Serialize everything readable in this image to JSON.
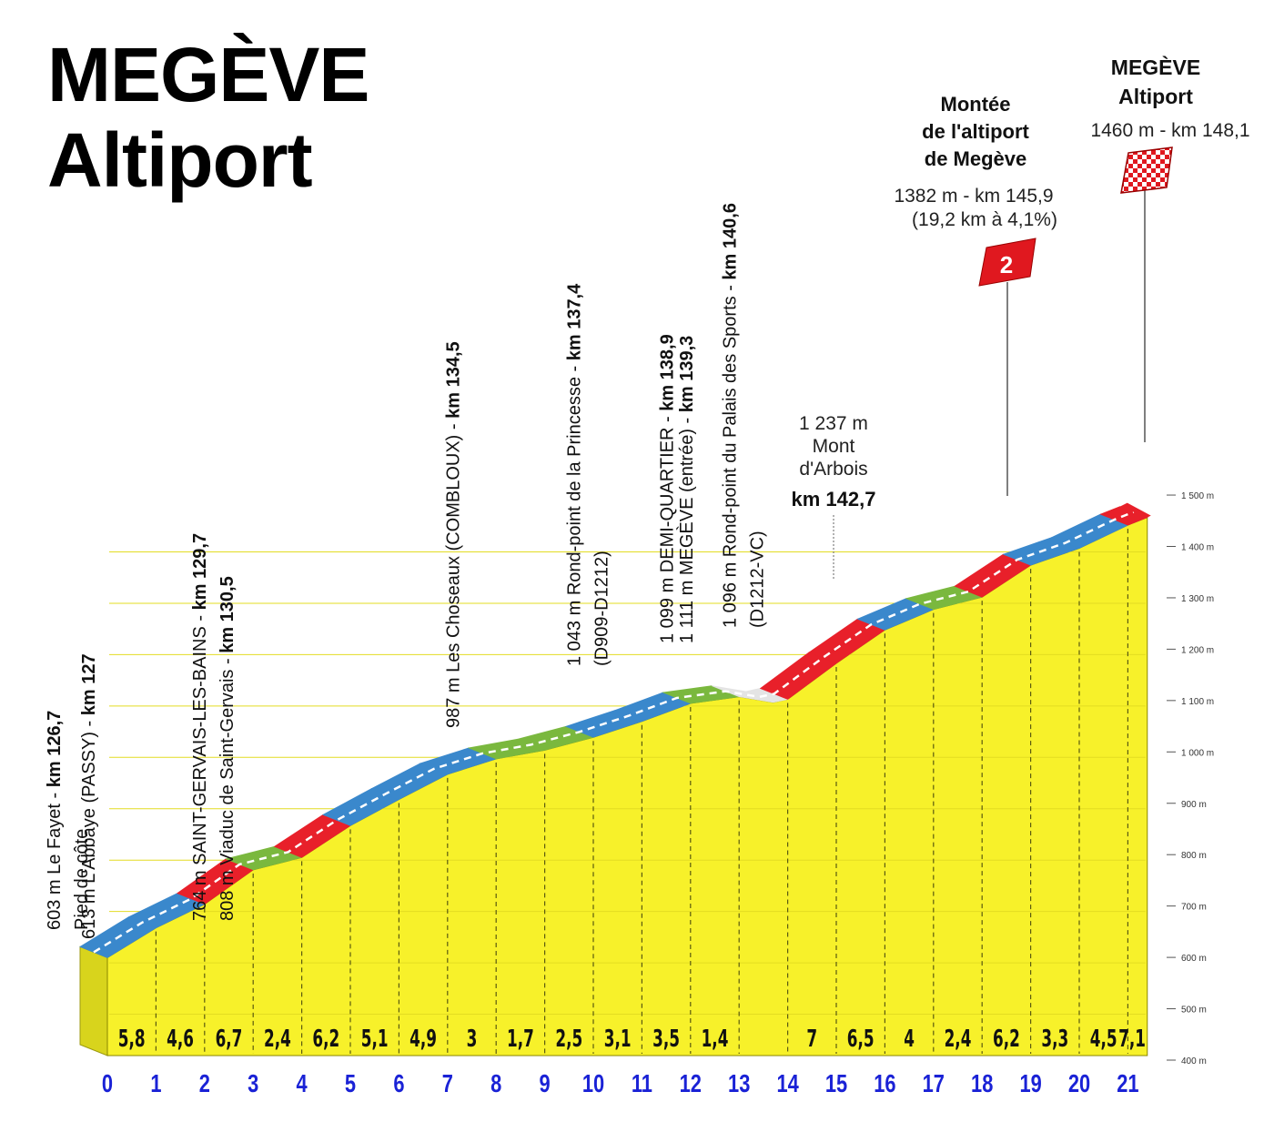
{
  "title": {
    "line1": "MEGÈVE",
    "line2": "Altiport"
  },
  "chart_data": {
    "type": "area",
    "title": "MEGÈVE Altiport",
    "x_unit": "km",
    "y_unit": "m",
    "xlim": [
      0,
      21.4
    ],
    "ylim": [
      400,
      1500
    ],
    "x_ticks": [
      "0",
      "1",
      "2",
      "3",
      "4",
      "5",
      "6",
      "7",
      "8",
      "9",
      "10",
      "11",
      "12",
      "13",
      "14",
      "15",
      "16",
      "17",
      "18",
      "19",
      "20",
      "21"
    ],
    "y_ticks": [
      "400 m",
      "500 m",
      "600 m",
      "700 m",
      "800 m",
      "900 m",
      "1 000 m",
      "1 100 m",
      "1 200 m",
      "1 300 m",
      "1 400 m",
      "1 500 m"
    ],
    "grid": false,
    "profile": [
      {
        "x": 0,
        "y": 603
      },
      {
        "x": 1,
        "y": 661
      },
      {
        "x": 2,
        "y": 707
      },
      {
        "x": 3,
        "y": 774
      },
      {
        "x": 3.5,
        "y": 786
      },
      {
        "x": 4,
        "y": 798
      },
      {
        "x": 5,
        "y": 860
      },
      {
        "x": 6,
        "y": 911
      },
      {
        "x": 7,
        "y": 960
      },
      {
        "x": 8,
        "y": 990
      },
      {
        "x": 9,
        "y": 1007
      },
      {
        "x": 10,
        "y": 1032
      },
      {
        "x": 11,
        "y": 1063
      },
      {
        "x": 12,
        "y": 1098
      },
      {
        "x": 13,
        "y": 1111
      },
      {
        "x": 13.7,
        "y": 1100
      },
      {
        "x": 14,
        "y": 1106
      },
      {
        "x": 15,
        "y": 1176
      },
      {
        "x": 16,
        "y": 1241
      },
      {
        "x": 17,
        "y": 1281
      },
      {
        "x": 18,
        "y": 1305
      },
      {
        "x": 19,
        "y": 1367
      },
      {
        "x": 20,
        "y": 1400
      },
      {
        "x": 21,
        "y": 1445
      },
      {
        "x": 21.4,
        "y": 1460
      }
    ],
    "gradient_segments": [
      {
        "from": 0,
        "to": 1,
        "value": "5,8",
        "class": "blue"
      },
      {
        "from": 1,
        "to": 2,
        "value": "4,6",
        "class": "blue"
      },
      {
        "from": 2,
        "to": 3,
        "value": "6,7",
        "class": "red"
      },
      {
        "from": 3,
        "to": 4,
        "value": "2,4",
        "class": "green"
      },
      {
        "from": 4,
        "to": 5,
        "value": "6,2",
        "class": "red"
      },
      {
        "from": 5,
        "to": 6,
        "value": "5,1",
        "class": "blue"
      },
      {
        "from": 6,
        "to": 7,
        "value": "4,9",
        "class": "blue"
      },
      {
        "from": 7,
        "to": 8,
        "value": "3",
        "class": "blue"
      },
      {
        "from": 8,
        "to": 9,
        "value": "1,7",
        "class": "green"
      },
      {
        "from": 9,
        "to": 10,
        "value": "2,5",
        "class": "green"
      },
      {
        "from": 10,
        "to": 11,
        "value": "3,1",
        "class": "blue"
      },
      {
        "from": 11,
        "to": 12,
        "value": "3,5",
        "class": "blue"
      },
      {
        "from": 12,
        "to": 13,
        "value": "1,4",
        "class": "green"
      },
      {
        "from": 13,
        "to": 14,
        "value": "",
        "class": "flat"
      },
      {
        "from": 14,
        "to": 15,
        "value": "7",
        "class": "red"
      },
      {
        "from": 15,
        "to": 16,
        "value": "6,5",
        "class": "red"
      },
      {
        "from": 16,
        "to": 17,
        "value": "4",
        "class": "blue"
      },
      {
        "from": 17,
        "to": 18,
        "value": "2,4",
        "class": "green"
      },
      {
        "from": 18,
        "to": 19,
        "value": "6,2",
        "class": "red"
      },
      {
        "from": 19,
        "to": 20,
        "value": "3,3",
        "class": "blue"
      },
      {
        "from": 20,
        "to": 21,
        "value": "4,5",
        "class": "blue"
      },
      {
        "from": 21,
        "to": 21.4,
        "value": "7,1",
        "class": "red"
      }
    ],
    "vertical_annotations": [
      {
        "x": 0,
        "lines": [
          {
            "normal": "603 m Le Fayet - ",
            "bold": "km 126,7"
          },
          {
            "normal": "Pied de côte",
            "bold": ""
          }
        ]
      },
      {
        "x": 0.3,
        "lines": [
          {
            "normal": "613 m L'Abbaye (PASSY) - ",
            "bold": "km 127"
          }
        ]
      },
      {
        "x": 3,
        "lines": [
          {
            "normal": "764 m SAINT-GERVAIS-LES-BAINS - ",
            "bold": "km 129,7"
          },
          {
            "normal": "808 m Viaduc de Saint-Gervais - ",
            "bold": "km 130,5"
          }
        ]
      },
      {
        "x": 7.8,
        "lines": [
          {
            "normal": "987 m Les Choseaux (COMBLOUX) - ",
            "bold": "km 134,5"
          }
        ]
      },
      {
        "x": 10.7,
        "lines": [
          {
            "normal": "1 043 m Rond-point de la Princesse - ",
            "bold": "km 137,4"
          },
          {
            "normal": "(D909-D1212)",
            "bold": ""
          }
        ]
      },
      {
        "x": 12.2,
        "lines": [
          {
            "normal": "1 099 m DEMI-QUARTIER - ",
            "bold": "km 138,9"
          }
        ]
      },
      {
        "x": 12.6,
        "lines": [
          {
            "normal": "1 111 m MEGÈVE (entrée) - ",
            "bold": "km 139,3"
          }
        ]
      },
      {
        "x": 13.9,
        "lines": [
          {
            "normal": "1 096 m Rond-point du Palais des Sports - ",
            "bold": "km 140,6"
          },
          {
            "normal": "(D1212-VC)",
            "bold": ""
          }
        ]
      }
    ],
    "summit_label": {
      "x": 16,
      "lines": [
        "1 237 m",
        "Mont",
        "d'Arbois"
      ],
      "km": "km 142,7"
    },
    "climb": {
      "category": "2",
      "name_lines": [
        "Montée",
        "de l'altiport",
        "de Megève"
      ],
      "info_lines": [
        "1382 m - km 145,9",
        "(19,2 km à 4,1%)"
      ]
    },
    "finish": {
      "name_lines": [
        "MEGÈVE",
        "Altiport"
      ],
      "info": "1460 m - km 148,1"
    }
  },
  "colors": {
    "profile_fill": "#f7f12a",
    "profile_side": "#d8d41c",
    "blue": "#3a88cc",
    "red": "#e8202a",
    "green": "#7ab83e",
    "flat": "#e4e4e4",
    "km_labels": "#1a22d6",
    "climb_flag": "#e0181f"
  }
}
